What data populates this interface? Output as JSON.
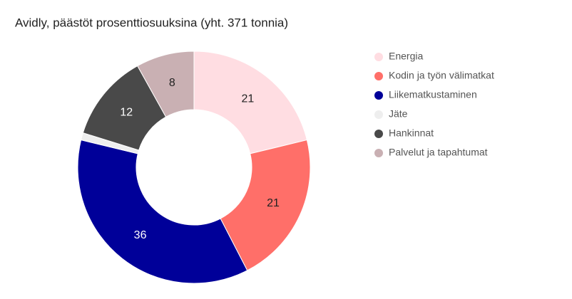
{
  "chart_data": {
    "type": "donut",
    "title": "Avidly, päästöt prosenttiosuuksina (yht. 371 tonnia)",
    "categories": [
      "Energia",
      "Kodin ja työn välimatkat",
      "Liikematkustaminen",
      "Jäte",
      "Hankinnat",
      "Palvelut ja tapahtumat"
    ],
    "values": [
      21,
      21,
      36,
      1,
      12,
      8
    ],
    "colors": [
      "#ffdde2",
      "#ff6f69",
      "#000099",
      "#eeeeee",
      "#494949",
      "#c9b0b3"
    ],
    "legend": "right"
  }
}
